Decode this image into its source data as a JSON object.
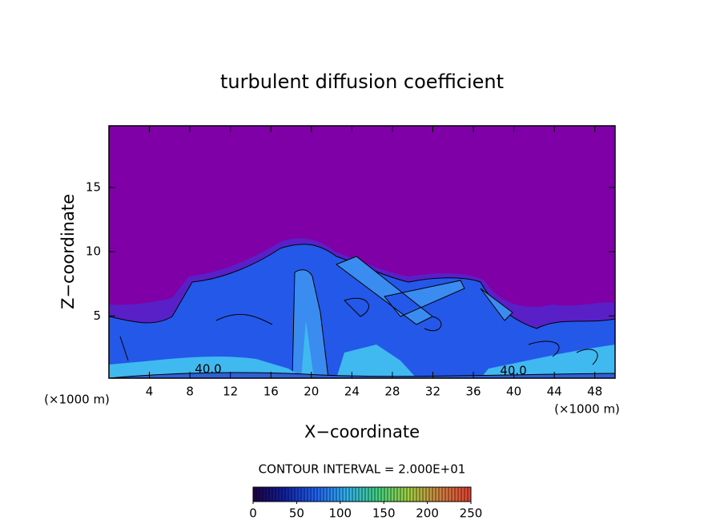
{
  "chart_data": {
    "type": "contour",
    "title": "turbulent diffusion coefficient",
    "x_label": "X−coordinate",
    "y_label": "Z−coordinate",
    "x_unit_label": "(×1000 m)",
    "y_unit_label": "(×1000 m)",
    "xlim": [
      0,
      50
    ],
    "xticks": [
      4,
      8,
      12,
      16,
      20,
      24,
      28,
      32,
      36,
      40,
      44,
      48
    ],
    "ylim": [
      0,
      19.8
    ],
    "yticks": [
      5,
      10,
      15
    ],
    "contour_labels": [
      {
        "value": 40,
        "label": "40.0"
      },
      {
        "value": 40,
        "label": "40.0"
      }
    ],
    "contour_interval": "CONTOUR INTERVAL = 2.000E+01",
    "colorbar_lim": [
      0,
      250
    ],
    "colorbar_ticks": [
      0,
      50,
      100,
      150,
      200,
      250
    ],
    "colormap": [
      "#200040",
      "#1020a0",
      "#2060f0",
      "#30b0f0",
      "#40d080",
      "#a0d040",
      "#d08040",
      "#e04030"
    ]
  }
}
